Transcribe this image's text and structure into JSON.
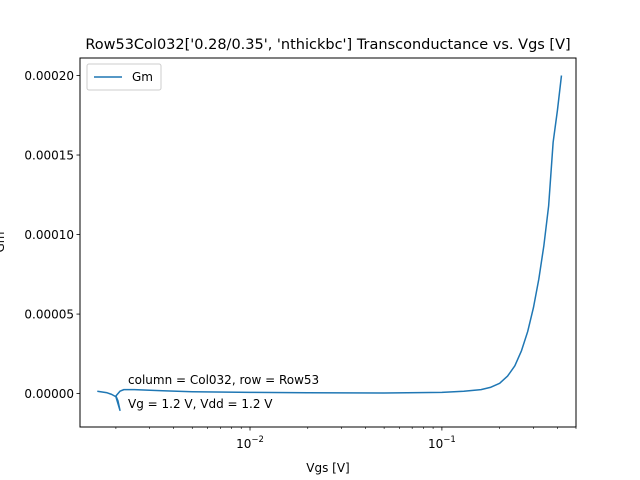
{
  "chart_data": {
    "type": "line",
    "title": "Row53Col032['0.28/0.35', 'nthickbc'] Transconductance vs. Vgs [V]",
    "xlabel": "Vgs [V]",
    "ylabel": "Gm",
    "xscale": "log",
    "xlim": [
      0.0013,
      0.5
    ],
    "ylim": [
      -2.1e-05,
      0.000211
    ],
    "x_ticks": [
      {
        "value": 0.01,
        "base": "10",
        "exp": "−2"
      },
      {
        "value": 0.1,
        "base": "10",
        "exp": "−1"
      }
    ],
    "y_ticks": [
      {
        "value": 0,
        "label": "0.00000"
      },
      {
        "value": 5e-05,
        "label": "0.00005"
      },
      {
        "value": 0.0001,
        "label": "0.00010"
      },
      {
        "value": 0.00015,
        "label": "0.00015"
      },
      {
        "value": 0.0002,
        "label": "0.00020"
      }
    ],
    "legend": {
      "position": "upper left",
      "entries": [
        "Gm"
      ]
    },
    "grid": false,
    "color": "#1f77b4",
    "series": [
      {
        "name": "Gm",
        "points": [
          [
            0.0016,
            1.5e-06
          ],
          [
            0.0018,
            5e-07
          ],
          [
            0.0019,
            -5e-07
          ],
          [
            0.002,
            -2e-06
          ],
          [
            0.0021,
            -1.05e-05
          ],
          [
            0.00205,
            -4.5e-06
          ],
          [
            0.002,
            -1.5e-06
          ],
          [
            0.0021,
            1.5e-06
          ],
          [
            0.0022,
            2.5e-06
          ],
          [
            0.0025,
            2.5e-06
          ],
          [
            0.0035,
            1.8e-06
          ],
          [
            0.005,
            1.2e-06
          ],
          [
            0.01,
            8e-07
          ],
          [
            0.02,
            5e-07
          ],
          [
            0.05,
            4e-07
          ],
          [
            0.1,
            8e-07
          ],
          [
            0.13,
            1.5e-06
          ],
          [
            0.16,
            2.5e-06
          ],
          [
            0.18,
            4e-06
          ],
          [
            0.2,
            6.5e-06
          ],
          [
            0.22,
            1.1e-05
          ],
          [
            0.24,
            1.75e-05
          ],
          [
            0.26,
            2.7e-05
          ],
          [
            0.28,
            3.9e-05
          ],
          [
            0.3,
            5.4e-05
          ],
          [
            0.32,
            7.2e-05
          ],
          [
            0.34,
            9.3e-05
          ],
          [
            0.36,
            0.000118
          ],
          [
            0.38,
            0.000158
          ],
          [
            0.4,
            0.000178
          ],
          [
            0.42,
            0.0002
          ]
        ]
      }
    ],
    "annotations": [
      "column = Col032, row = Row53",
      "Vg = 1.2 V, Vdd = 1.2 V"
    ]
  }
}
